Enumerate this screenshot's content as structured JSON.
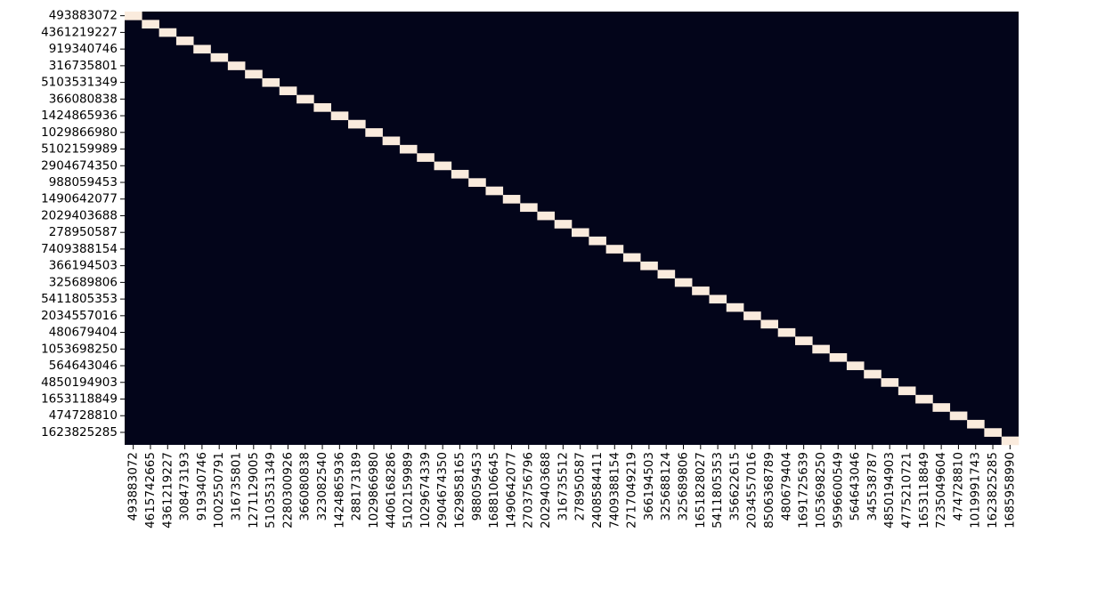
{
  "chart_data": {
    "type": "heatmap",
    "title": "",
    "xlabel": "",
    "ylabel": "",
    "colorbar": false,
    "grid": false,
    "cell_values": {
      "diagonal": 1,
      "off_diagonal": 0
    },
    "colors": {
      "low": "#03051a",
      "high": "#faebdd"
    },
    "x_categories": [
      "493883072",
      "4615742665",
      "4361219227",
      "308473193",
      "919340746",
      "1002550791",
      "316735801",
      "1271129005",
      "5103531349",
      "2280300926",
      "366080838",
      "323082540",
      "1424865936",
      "288173189",
      "1029866980",
      "4406168286",
      "5102159989",
      "1029674339",
      "2904674350",
      "1629858165",
      "988059453",
      "1688106645",
      "1490642077",
      "2703756796",
      "2029403688",
      "316735512",
      "278950587",
      "2408584411",
      "7409388154",
      "2717049219",
      "366194503",
      "325688124",
      "325689806",
      "1651828027",
      "5411805353",
      "356622615",
      "2034557016",
      "8506368789",
      "480679404",
      "1691725639",
      "1053698250",
      "9596600549",
      "564643046",
      "345538787",
      "4850194903",
      "4775210721",
      "1653118849",
      "7235049604",
      "474728810",
      "1019991743",
      "1623825285",
      "1685958990"
    ],
    "y_categories": [
      "493883072",
      "4361219227",
      "919340746",
      "316735801",
      "5103531349",
      "366080838",
      "1424865936",
      "1029866980",
      "5102159989",
      "2904674350",
      "988059453",
      "1490642077",
      "2029403688",
      "278950587",
      "7409388154",
      "366194503",
      "325689806",
      "5411805353",
      "2034557016",
      "480679404",
      "1053698250",
      "564643046",
      "4850194903",
      "1653118849",
      "474728810",
      "1623825285"
    ]
  }
}
